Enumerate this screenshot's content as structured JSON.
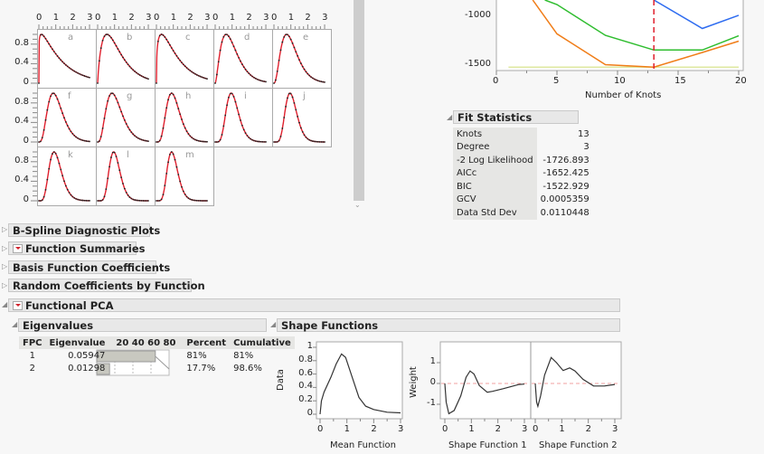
{
  "panels": {
    "x_ticks": [
      "0",
      "1",
      "2",
      "3"
    ],
    "y_ticks": [
      "0.8",
      "0.4",
      "0"
    ],
    "curves": [
      {
        "label": "a",
        "peak": 0.15,
        "rate": 0.9
      },
      {
        "label": "b",
        "peak": 0.55,
        "rate": 1.6
      },
      {
        "label": "c",
        "peak": 0.3,
        "rate": 1.2
      },
      {
        "label": "d",
        "peak": 0.65,
        "rate": 2.6
      },
      {
        "label": "e",
        "peak": 0.75,
        "rate": 3.2
      },
      {
        "label": "f",
        "peak": 0.85,
        "rate": 4.2
      },
      {
        "label": "g",
        "peak": 0.85,
        "rate": 3.8
      },
      {
        "label": "h",
        "peak": 0.9,
        "rate": 5.5
      },
      {
        "label": "i",
        "peak": 0.95,
        "rate": 7
      },
      {
        "label": "j",
        "peak": 0.95,
        "rate": 8
      },
      {
        "label": "k",
        "peak": 0.9,
        "rate": 6.5
      },
      {
        "label": "l",
        "peak": 0.95,
        "rate": 9
      },
      {
        "label": "m",
        "peak": 0.9,
        "rate": 9
      }
    ],
    "curve_color": "#e0202e"
  },
  "knots_plot": {
    "xlabel": "Number of Knots",
    "x_ticks": [
      "0",
      "5",
      "10",
      "15",
      "20"
    ],
    "y_ticks": [
      "-1000",
      "-1500"
    ],
    "selected_knots": 13,
    "series": [
      {
        "name": "orange",
        "color": "#f07d18",
        "points": [
          [
            3,
            -800
          ],
          [
            5,
            -1180
          ],
          [
            9,
            -1495
          ],
          [
            13,
            -1520
          ],
          [
            17,
            -1370
          ],
          [
            20,
            -1255
          ]
        ]
      },
      {
        "name": "green",
        "color": "#2fbd2f",
        "points": [
          [
            4,
            -800
          ],
          [
            5,
            -880
          ],
          [
            9,
            -1195
          ],
          [
            13,
            -1345
          ],
          [
            17,
            -1345
          ],
          [
            20,
            -1200
          ]
        ]
      },
      {
        "name": "blue",
        "color": "#2e6cf0",
        "points": [
          [
            13,
            -820
          ],
          [
            17,
            -1125
          ],
          [
            20,
            -990
          ]
        ]
      },
      {
        "name": "yellow",
        "color": "#dfe8a0",
        "points": [
          [
            1,
            -1520
          ],
          [
            20,
            -1520
          ]
        ]
      }
    ]
  },
  "fit_statistics": {
    "title": "Fit Statistics",
    "rows": [
      {
        "label": "Knots",
        "value": "13"
      },
      {
        "label": "Degree",
        "value": "3"
      },
      {
        "label": "-2 Log Likelihood",
        "value": "-1726.893"
      },
      {
        "label": "AICc",
        "value": "-1652.425"
      },
      {
        "label": "BIC",
        "value": "-1522.929"
      },
      {
        "label": "GCV",
        "value": "0.0005359"
      },
      {
        "label": "Data Std Dev",
        "value": "0.0110448"
      }
    ]
  },
  "sections": {
    "bspline": "B-Spline Diagnostic Plots",
    "summaries": "Function Summaries",
    "basis": "Basis Function Coefficients",
    "random": "Random Coefficients by Function",
    "fpca": "Functional PCA"
  },
  "eigenvalues": {
    "title": "Eigenvalues",
    "headers": [
      "FPC",
      "Eigenvalue",
      "20 40 60 80",
      "Percent",
      "Cumulative"
    ],
    "rows": [
      {
        "fpc": "1",
        "eigenvalue": "0.05947",
        "percent": "81%",
        "cumulative": "81%",
        "pct_value": 81
      },
      {
        "fpc": "2",
        "eigenvalue": "0.01298",
        "percent": "17.7%",
        "cumulative": "98.6%",
        "pct_value": 17.7
      }
    ]
  },
  "shape_functions": {
    "title": "Shape Functions",
    "mean_ylabel": "Data",
    "mean_xlabel": "Mean Function",
    "mean_y_ticks": [
      "1",
      "0.8",
      "0.6",
      "0.4",
      "0.2",
      "0"
    ],
    "weight_ylabel": "Weight",
    "weight_y_ticks": [
      "1",
      "0",
      "-1"
    ],
    "x_ticks": [
      "0",
      "1",
      "2",
      "3"
    ],
    "sf1_label": "Shape Function 1",
    "sf2_label": "Shape Function 2",
    "mean_curve": [
      [
        0,
        0
      ],
      [
        0.05,
        0.2
      ],
      [
        0.15,
        0.33
      ],
      [
        0.4,
        0.55
      ],
      [
        0.6,
        0.75
      ],
      [
        0.8,
        0.9
      ],
      [
        0.95,
        0.85
      ],
      [
        1.2,
        0.55
      ],
      [
        1.45,
        0.25
      ],
      [
        1.7,
        0.12
      ],
      [
        2,
        0.07
      ],
      [
        2.5,
        0.03
      ],
      [
        3,
        0.02
      ]
    ],
    "sf1_curve": [
      [
        0,
        0
      ],
      [
        0.05,
        -0.9
      ],
      [
        0.15,
        -1.45
      ],
      [
        0.35,
        -1.3
      ],
      [
        0.6,
        -0.6
      ],
      [
        0.8,
        0.3
      ],
      [
        0.95,
        0.6
      ],
      [
        1.1,
        0.45
      ],
      [
        1.3,
        -0.1
      ],
      [
        1.6,
        -0.42
      ],
      [
        1.8,
        -0.38
      ],
      [
        2.2,
        -0.25
      ],
      [
        2.5,
        -0.15
      ],
      [
        2.8,
        -0.05
      ],
      [
        3,
        -0.03
      ]
    ],
    "sf2_curve": [
      [
        0,
        0
      ],
      [
        0.05,
        -0.9
      ],
      [
        0.1,
        -1.1
      ],
      [
        0.2,
        -0.6
      ],
      [
        0.35,
        0.4
      ],
      [
        0.6,
        1.25
      ],
      [
        0.8,
        1.0
      ],
      [
        1.05,
        0.62
      ],
      [
        1.3,
        0.75
      ],
      [
        1.5,
        0.6
      ],
      [
        1.8,
        0.2
      ],
      [
        2.2,
        -0.12
      ],
      [
        2.6,
        -0.12
      ],
      [
        3,
        -0.05
      ]
    ]
  }
}
